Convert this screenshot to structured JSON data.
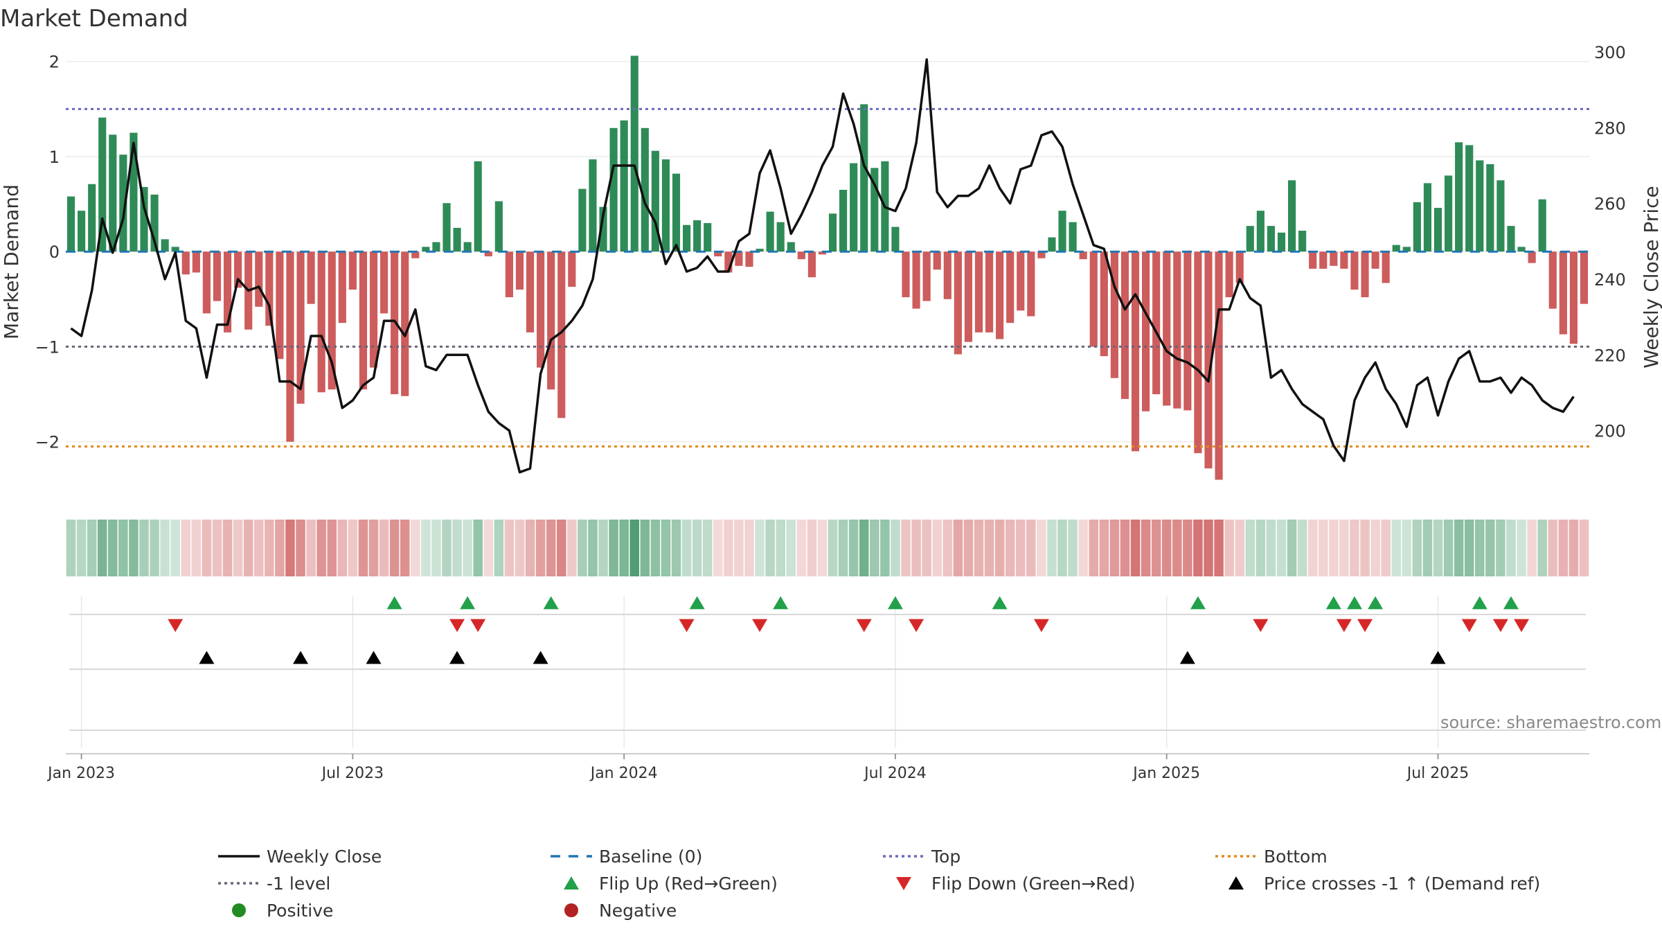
{
  "chart_data": {
    "type": "bar",
    "title": "Market Demand",
    "ylabel": "Market Demand",
    "y2label": "Weekly Close Price",
    "ylim": [
      -2.6,
      2.1
    ],
    "y2lim": [
      182,
      300
    ],
    "yticks": [
      "2",
      "1",
      "0",
      "−1",
      "−2"
    ],
    "y2ticks": [
      "300",
      "280",
      "260",
      "240",
      "220",
      "200"
    ],
    "x_labels": [
      "Jan 2023",
      "Jul 2023",
      "Jan 2024",
      "Jul 2024",
      "Jan 2025",
      "Jul 2025"
    ],
    "x_label_weeks": [
      1,
      27,
      53,
      79,
      105,
      131
    ],
    "reference_lines": {
      "top": 1.5,
      "minus_one": -1.0,
      "bottom": -2.05,
      "baseline": 0
    },
    "source": "source: sharemaestro.com",
    "colors": {
      "positive_bar": "#2e8b57",
      "negative_bar": "#cd5c5c",
      "close_line": "#111111",
      "baseline": "#1f77b4",
      "top_line": "#6a6ac0",
      "minus_one_line": "#666677",
      "bottom_line": "#e08a1e",
      "flip_up": "#22a04a",
      "flip_down": "#d62728",
      "price_cross": "#000000",
      "positive_dot": "#228b22",
      "negative_dot": "#b22222"
    },
    "series": [
      {
        "name": "Market Demand",
        "values": [
          0.58,
          0.43,
          0.71,
          1.41,
          1.23,
          1.02,
          1.25,
          0.68,
          0.6,
          0.13,
          0.05,
          -0.24,
          -0.22,
          -0.65,
          -0.52,
          -0.85,
          -0.38,
          -0.82,
          -0.58,
          -0.78,
          -1.13,
          -2.0,
          -1.6,
          -0.55,
          -1.48,
          -1.45,
          -0.75,
          -0.4,
          -1.45,
          -1.22,
          -0.65,
          -1.5,
          -1.52,
          -0.07,
          0.05,
          0.1,
          0.51,
          0.25,
          0.1,
          0.95,
          -0.05,
          0.53,
          -0.48,
          -0.4,
          -0.85,
          -1.22,
          -1.45,
          -1.75,
          -0.37,
          0.66,
          0.97,
          0.47,
          1.3,
          1.38,
          2.06,
          1.3,
          1.06,
          0.97,
          0.82,
          0.28,
          0.33,
          0.3,
          -0.05,
          -0.22,
          -0.15,
          -0.16,
          0.03,
          0.42,
          0.31,
          0.1,
          -0.08,
          -0.27,
          -0.03,
          0.4,
          0.65,
          0.93,
          1.55,
          0.88,
          0.95,
          0.26,
          -0.48,
          -0.6,
          -0.52,
          -0.19,
          -0.5,
          -1.08,
          -0.95,
          -0.85,
          -0.85,
          -0.92,
          -0.75,
          -0.62,
          -0.68,
          -0.07,
          0.15,
          0.43,
          0.31,
          -0.08,
          -1.0,
          -1.1,
          -1.33,
          -1.55,
          -2.1,
          -1.68,
          -1.5,
          -1.62,
          -1.65,
          -1.67,
          -2.12,
          -2.28,
          -2.4,
          -0.48,
          -0.33,
          0.27,
          0.43,
          0.27,
          0.2,
          0.75,
          0.22,
          -0.18,
          -0.18,
          -0.15,
          -0.18,
          -0.4,
          -0.48,
          -0.18,
          -0.33,
          0.07,
          0.05,
          0.52,
          0.72,
          0.46,
          0.8,
          1.15,
          1.12,
          0.96,
          0.92,
          0.75,
          0.27,
          0.05,
          -0.12,
          0.55,
          -0.6,
          -0.87,
          -0.97,
          -0.55
        ]
      },
      {
        "name": "Weekly Close",
        "values": [
          227,
          225,
          237,
          256,
          247,
          256,
          276,
          259,
          250,
          240,
          247,
          229,
          227,
          214,
          228,
          228,
          240,
          237,
          238,
          233,
          213,
          213,
          211,
          225,
          225,
          218,
          206,
          208,
          212,
          214,
          229,
          229,
          225,
          232,
          217,
          216,
          220,
          220,
          220,
          212,
          205,
          202,
          200,
          189,
          190,
          215,
          224,
          226,
          229,
          233,
          240,
          257,
          270,
          270,
          270,
          260,
          255,
          244,
          249,
          242,
          243,
          246,
          242,
          242,
          250,
          252,
          268,
          274,
          264,
          252,
          257,
          263,
          270,
          275,
          289,
          281,
          270,
          265,
          259,
          258,
          264,
          276,
          298,
          263,
          259,
          262,
          262,
          264,
          270,
          264,
          260,
          269,
          270,
          278,
          279,
          275,
          265,
          257,
          249,
          248,
          238,
          232,
          236,
          231,
          226,
          221,
          219,
          218,
          216,
          213,
          232,
          232,
          240,
          235,
          233,
          214,
          216,
          211,
          207,
          205,
          203,
          196,
          192,
          208,
          214,
          218,
          211,
          207,
          201,
          212,
          214,
          204,
          213,
          219,
          221,
          213,
          213,
          214,
          210,
          214,
          212,
          208,
          206,
          205,
          209
        ]
      }
    ],
    "flip_up_weeks": [
      31,
      38,
      46,
      60,
      68,
      79,
      89,
      108,
      121,
      123,
      125,
      135,
      138
    ],
    "flip_down_weeks": [
      10,
      37,
      39,
      59,
      66,
      76,
      81,
      93,
      114,
      122,
      124,
      134,
      137,
      139
    ],
    "price_cross_weeks": [
      13,
      22,
      29,
      37,
      45,
      107,
      131
    ],
    "legend": [
      {
        "label": "Weekly Close",
        "symbol": "line",
        "color": "#111111"
      },
      {
        "label": "Baseline (0)",
        "symbol": "dash",
        "color": "#1f77b4"
      },
      {
        "label": "Top",
        "symbol": "dot",
        "color": "#6a6ac0"
      },
      {
        "label": "Bottom",
        "symbol": "dot",
        "color": "#e08a1e"
      },
      {
        "label": "-1 level",
        "symbol": "dot",
        "color": "#666677"
      },
      {
        "label": "Flip Up (Red→Green)",
        "symbol": "tri-up",
        "color": "#22a04a"
      },
      {
        "label": "Flip Down (Green→Red)",
        "symbol": "tri-down",
        "color": "#d62728"
      },
      {
        "label": "Price crosses -1 ↑ (Demand ref)",
        "symbol": "tri-up",
        "color": "#000000"
      },
      {
        "label": "Positive",
        "symbol": "circle",
        "color": "#228b22"
      },
      {
        "label": "Negative",
        "symbol": "circle",
        "color": "#b22222"
      }
    ]
  }
}
